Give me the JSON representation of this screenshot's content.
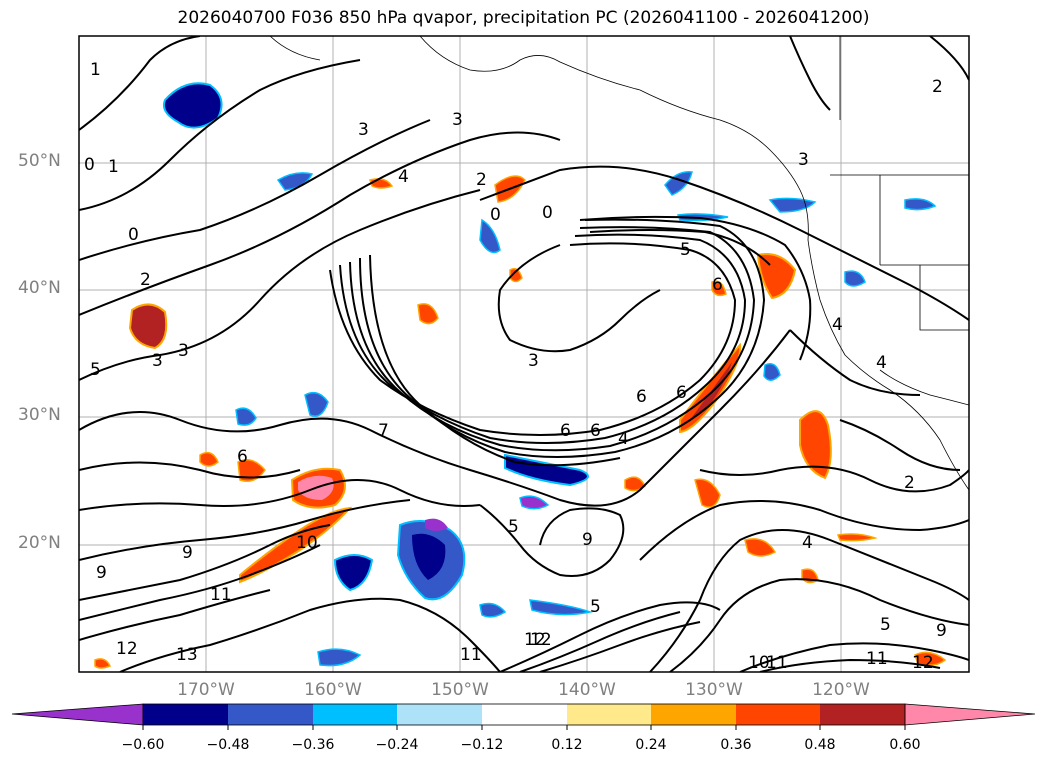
{
  "title": "2026040700 F036 850 hPa qvapor, precipitation PC (2026041100 - 2026041200)",
  "map": {
    "lat_labels": [
      "50°N",
      "40°N",
      "30°N",
      "20°N"
    ],
    "lon_labels": [
      "170°W",
      "160°W",
      "150°W",
      "140°W",
      "130°W",
      "120°W"
    ],
    "contour_labels": [
      "1",
      "0",
      "1",
      "0",
      "2",
      "3",
      "3",
      "5",
      "3",
      "4",
      "2",
      "0",
      "0",
      "3",
      "3",
      "6",
      "7",
      "6",
      "6",
      "6",
      "6",
      "9",
      "9",
      "10",
      "11",
      "12",
      "13",
      "11",
      "12",
      "9",
      "4",
      "2",
      "4",
      "4",
      "3",
      "5",
      "5",
      "6",
      "4",
      "5",
      "11",
      "12",
      "10",
      "11",
      "9",
      "12",
      "5",
      "2"
    ]
  },
  "colorbar": {
    "ticks": [
      "−0.60",
      "−0.48",
      "−0.36",
      "−0.24",
      "−0.12",
      "0.12",
      "0.24",
      "0.36",
      "0.48",
      "0.60"
    ],
    "colors": [
      "#9932CC",
      "#00008B",
      "#3458C8",
      "#00BFFF",
      "#ADE2F8",
      "#FFFFFF",
      "#FFE98A",
      "#FFA500",
      "#FF4500",
      "#B22222",
      "#FF88AA"
    ]
  }
}
